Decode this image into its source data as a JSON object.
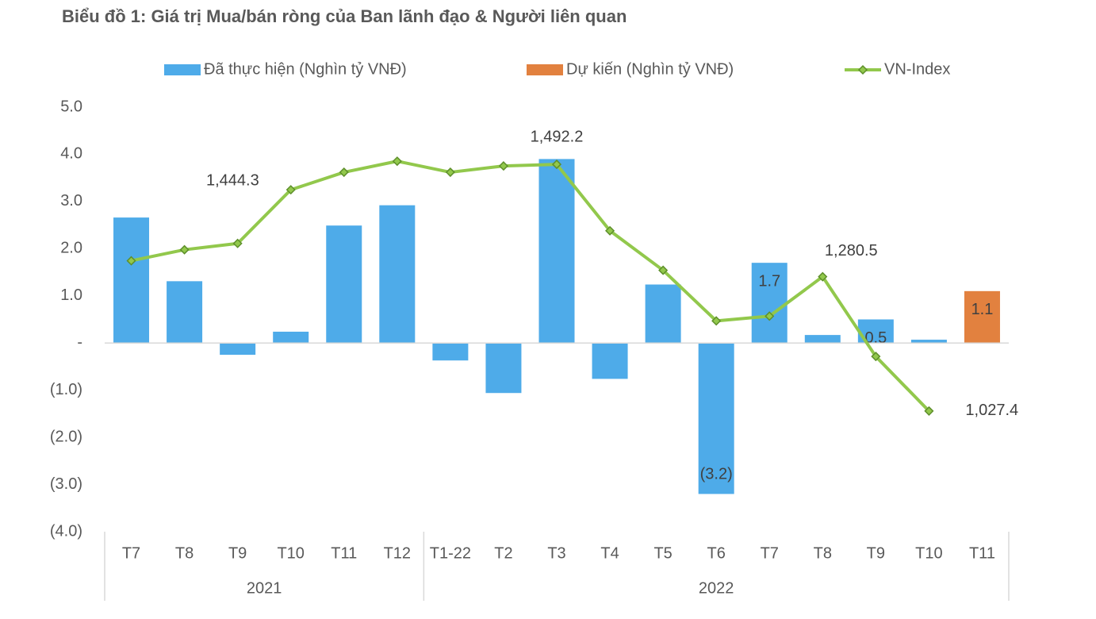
{
  "chart_data": {
    "type": "bar_line",
    "title": "Biểu đồ 1: Giá trị Mua/bán ròng của Ban lãnh đạo & Người liên quan",
    "categories": [
      "T7",
      "T8",
      "T9",
      "T10",
      "T11",
      "T12",
      "T1-22",
      "T2",
      "T3",
      "T4",
      "T5",
      "T6",
      "T7",
      "T8",
      "T9",
      "T10",
      "T11"
    ],
    "year_groups": [
      {
        "label": "2021",
        "count": 6
      },
      {
        "label": "2022",
        "count": 11
      }
    ],
    "series": [
      {
        "name": "Đã thực hiện (Nghìn tỷ VNĐ)",
        "type": "bar",
        "color": "#4eabe9",
        "values": [
          2.66,
          1.31,
          -0.25,
          0.24,
          2.49,
          2.92,
          -0.37,
          -1.06,
          3.9,
          -0.76,
          1.24,
          -3.2,
          1.7,
          0.17,
          0.5,
          0.07,
          null
        ],
        "value_labels": [
          null,
          null,
          null,
          null,
          null,
          null,
          null,
          null,
          null,
          null,
          null,
          "(3.2)",
          "1.7",
          null,
          "0.5",
          null,
          null
        ]
      },
      {
        "name": "Dự kiến (Nghìn tỷ VNĐ)",
        "type": "bar",
        "color": "#e2813f",
        "values": [
          null,
          null,
          null,
          null,
          null,
          null,
          null,
          null,
          null,
          null,
          null,
          null,
          null,
          null,
          null,
          null,
          1.1
        ],
        "value_labels": [
          null,
          null,
          null,
          null,
          null,
          null,
          null,
          null,
          null,
          null,
          null,
          null,
          null,
          null,
          null,
          null,
          "1.1"
        ]
      },
      {
        "name": "VN-Index",
        "type": "line",
        "axis": "y2",
        "color": "#92c84c",
        "values": [
          1310.5,
          1331.3,
          1343.2,
          1444.3,
          1477.3,
          1498.1,
          1477.3,
          1489.2,
          1492.2,
          1367.1,
          1292.6,
          1197.2,
          1206.2,
          1280.5,
          1130.2,
          1027.4,
          null
        ],
        "value_labels": [
          null,
          null,
          null,
          "1,444.3",
          null,
          null,
          null,
          null,
          "1,492.2",
          null,
          null,
          null,
          null,
          "1,280.5",
          null,
          "1,027.4",
          null
        ]
      }
    ],
    "ylim": [
      -4,
      5
    ],
    "yticks": [
      {
        "value": 5,
        "label": "5.0"
      },
      {
        "value": 4,
        "label": "4.0"
      },
      {
        "value": 3,
        "label": "3.0"
      },
      {
        "value": 2,
        "label": "2.0"
      },
      {
        "value": 1,
        "label": "1.0"
      },
      {
        "value": 0,
        "label": "-"
      },
      {
        "value": -1,
        "label": "(1.0)"
      },
      {
        "value": -2,
        "label": "(2.0)"
      },
      {
        "value": -3,
        "label": "(3.0)"
      },
      {
        "value": -4,
        "label": "(4.0)"
      }
    ],
    "y2lim": [
      800,
      1600
    ],
    "legend": "top"
  }
}
